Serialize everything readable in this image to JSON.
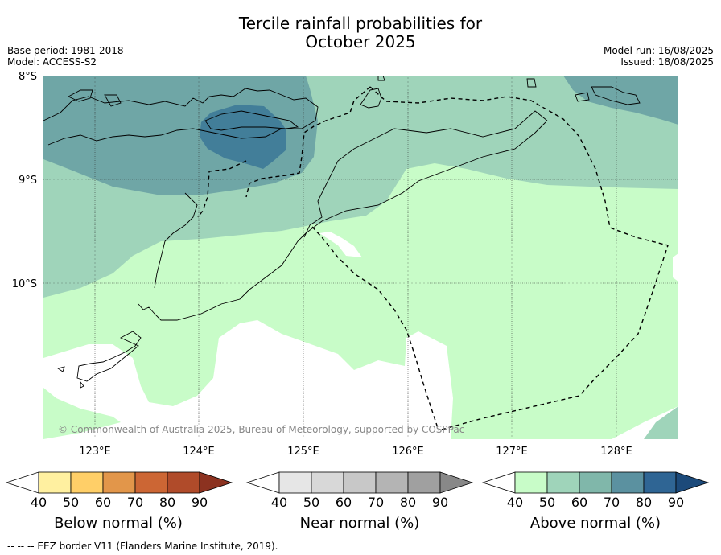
{
  "title_line1": "Tercile rainfall probabilities for",
  "title_line2": "October 2025",
  "meta_left": [
    "Base period: 1981-2018",
    "Model: ACCESS-S2"
  ],
  "meta_right": [
    "Model run: 16/08/2025",
    "Issued: 18/08/2025"
  ],
  "lat_labels": [
    "8°S",
    "9°S",
    "10°S"
  ],
  "lon_labels": [
    "123°E",
    "124°E",
    "125°E",
    "126°E",
    "127°E",
    "128°E"
  ],
  "copyright": "© Commonwealth of Australia 2025, Bureau of Meteorology, supported by COSPPac",
  "colorbars": [
    {
      "label": "Below normal (%)",
      "ticks": [
        "40",
        "50",
        "60",
        "70",
        "80",
        "90"
      ],
      "colors": [
        "#ffffff",
        "#fff0a0",
        "#ffcf68",
        "#e2964a",
        "#cc6634",
        "#b04b2a",
        "#8c3220"
      ]
    },
    {
      "label": "Near normal (%)",
      "ticks": [
        "40",
        "50",
        "60",
        "70",
        "80",
        "90"
      ],
      "colors": [
        "#ffffff",
        "#e6e6e6",
        "#d8d8d8",
        "#c8c8c8",
        "#b4b4b4",
        "#a0a0a0",
        "#888888"
      ]
    },
    {
      "label": "Above normal (%)",
      "ticks": [
        "40",
        "50",
        "60",
        "70",
        "80",
        "90"
      ],
      "colors": [
        "#ffffff",
        "#c8fcc8",
        "#9fd4ba",
        "#80b7aa",
        "#5b91a0",
        "#2f6594",
        "#1c4a7a"
      ]
    }
  ],
  "footer": "--  --  -- EEZ border V11 (Flanders Marine Institute, 2019)."
}
